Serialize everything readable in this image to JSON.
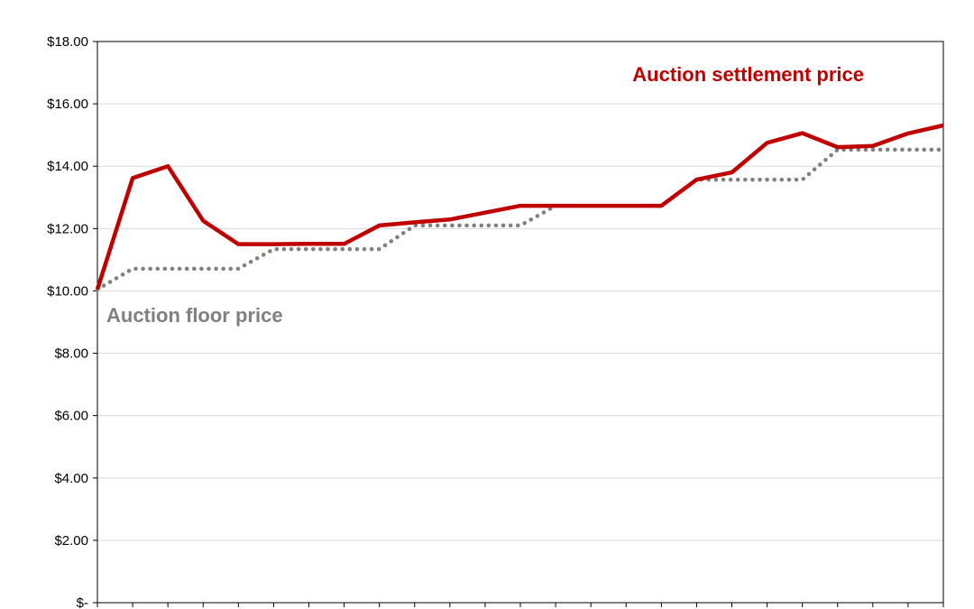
{
  "chart_data": {
    "type": "line",
    "title": "",
    "xlabel": "",
    "ylabel": "",
    "ylim": [
      0,
      18
    ],
    "y_ticks": [
      0,
      2,
      4,
      6,
      8,
      10,
      12,
      14,
      16,
      18
    ],
    "y_tick_labels": [
      "$-",
      "$2.00",
      "$4.00",
      "$6.00",
      "$8.00",
      "$10.00",
      "$12.00",
      "$14.00",
      "$16.00",
      "$18.00"
    ],
    "grid": true,
    "x": [
      1,
      2,
      3,
      4,
      5,
      6,
      7,
      8,
      9,
      10,
      11,
      12,
      13,
      14,
      15,
      16,
      17,
      18,
      19,
      20,
      21,
      22,
      23,
      24,
      25
    ],
    "series": [
      {
        "name": "Auction settlement price",
        "color": "#C00000",
        "style": "solid",
        "values": [
          10.05,
          13.62,
          14.0,
          12.25,
          11.5,
          11.5,
          11.51,
          11.51,
          12.1,
          12.2,
          12.29,
          12.51,
          12.73,
          12.73,
          12.73,
          12.73,
          12.73,
          13.57,
          13.8,
          14.75,
          15.06,
          14.61,
          14.65,
          15.05,
          15.31
        ]
      },
      {
        "name": "Auction floor price",
        "color": "#808080",
        "style": "dotted",
        "values": [
          10.05,
          10.71,
          10.71,
          10.71,
          10.71,
          11.34,
          11.34,
          11.34,
          11.34,
          12.1,
          12.1,
          12.1,
          12.1,
          12.73,
          12.73,
          12.73,
          12.73,
          13.57,
          13.57,
          13.57,
          13.57,
          14.53,
          14.53,
          14.53,
          14.53
        ]
      }
    ],
    "annotations": [
      {
        "text": "Auction settlement price",
        "color": "#C00000",
        "series": 0
      },
      {
        "text": "Auction floor price",
        "color": "#808080",
        "series": 1
      }
    ]
  }
}
